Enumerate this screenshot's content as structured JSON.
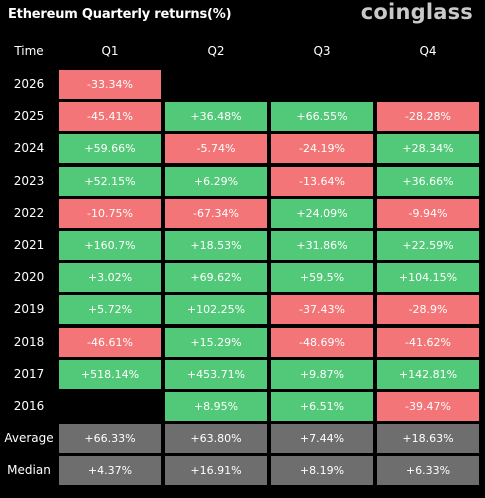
{
  "title": "Ethereum Quarterly returns(%)",
  "brand": "coinglass",
  "colors": {
    "positive": "#52c979",
    "negative": "#f37577",
    "summary": "#6e6e6e",
    "background": "#000000"
  },
  "table": {
    "corner_label": "Time",
    "columns": [
      "Q1",
      "Q2",
      "Q3",
      "Q4"
    ],
    "rows": [
      {
        "label": "2026",
        "cells": [
          "-33.34%",
          "",
          "",
          ""
        ]
      },
      {
        "label": "2025",
        "cells": [
          "-45.41%",
          "+36.48%",
          "+66.55%",
          "-28.28%"
        ]
      },
      {
        "label": "2024",
        "cells": [
          "+59.66%",
          "-5.74%",
          "-24.19%",
          "+28.34%"
        ]
      },
      {
        "label": "2023",
        "cells": [
          "+52.15%",
          "+6.29%",
          "-13.64%",
          "+36.66%"
        ]
      },
      {
        "label": "2022",
        "cells": [
          "-10.75%",
          "-67.34%",
          "+24.09%",
          "-9.94%"
        ]
      },
      {
        "label": "2021",
        "cells": [
          "+160.7%",
          "+18.53%",
          "+31.86%",
          "+22.59%"
        ]
      },
      {
        "label": "2020",
        "cells": [
          "+3.02%",
          "+69.62%",
          "+59.5%",
          "+104.15%"
        ]
      },
      {
        "label": "2019",
        "cells": [
          "+5.72%",
          "+102.25%",
          "-37.43%",
          "-28.9%"
        ]
      },
      {
        "label": "2018",
        "cells": [
          "-46.61%",
          "+15.29%",
          "-48.69%",
          "-41.62%"
        ]
      },
      {
        "label": "2017",
        "cells": [
          "+518.14%",
          "+453.71%",
          "+9.87%",
          "+142.81%"
        ]
      },
      {
        "label": "2016",
        "cells": [
          "",
          "+8.95%",
          "+6.51%",
          "-39.47%"
        ]
      }
    ],
    "summary_rows": [
      {
        "label": "Average",
        "cells": [
          "+66.33%",
          "+63.80%",
          "+7.44%",
          "+18.63%"
        ]
      },
      {
        "label": "Median",
        "cells": [
          "+4.37%",
          "+16.91%",
          "+8.19%",
          "+6.33%"
        ]
      }
    ]
  },
  "chart_data": {
    "type": "table",
    "title": "Ethereum Quarterly returns(%)",
    "columns": [
      "Q1",
      "Q2",
      "Q3",
      "Q4"
    ],
    "row_labels": [
      "2026",
      "2025",
      "2024",
      "2023",
      "2022",
      "2021",
      "2020",
      "2019",
      "2018",
      "2017",
      "2016",
      "Average",
      "Median"
    ],
    "values": [
      [
        -33.34,
        null,
        null,
        null
      ],
      [
        -45.41,
        36.48,
        66.55,
        -28.28
      ],
      [
        59.66,
        -5.74,
        -24.19,
        28.34
      ],
      [
        52.15,
        6.29,
        -13.64,
        36.66
      ],
      [
        -10.75,
        -67.34,
        24.09,
        -9.94
      ],
      [
        160.7,
        18.53,
        31.86,
        22.59
      ],
      [
        3.02,
        69.62,
        59.5,
        104.15
      ],
      [
        5.72,
        102.25,
        -37.43,
        -28.9
      ],
      [
        -46.61,
        15.29,
        -48.69,
        -41.62
      ],
      [
        518.14,
        453.71,
        9.87,
        142.81
      ],
      [
        null,
        8.95,
        6.51,
        -39.47
      ],
      [
        66.33,
        63.8,
        7.44,
        18.63
      ],
      [
        4.37,
        16.91,
        8.19,
        6.33
      ]
    ]
  }
}
